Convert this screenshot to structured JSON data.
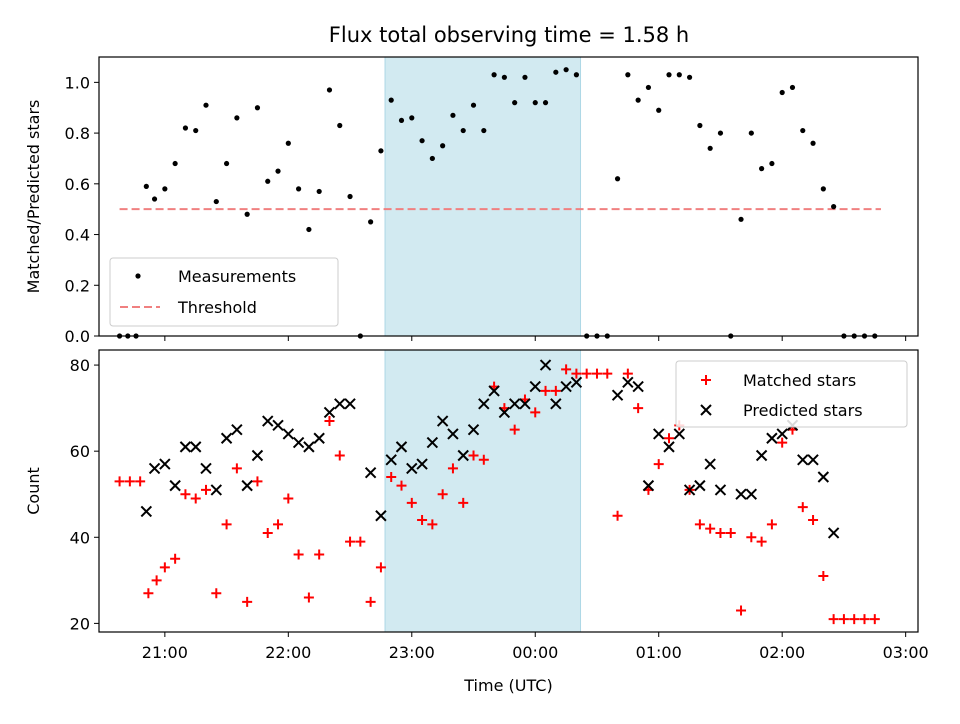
{
  "title": "Flux total observing time = 1.58 h",
  "colors": {
    "matched": "#ff0000",
    "predicted": "#000000",
    "threshold": "#f08080",
    "shade": "#add8e6"
  },
  "chart_data": [
    {
      "type": "scatter",
      "ylabel": "Matched/Predicted stars",
      "ylim": [
        0,
        1.1
      ],
      "yticks": [
        "0.0",
        "0.2",
        "0.4",
        "0.6",
        "0.8",
        "1.0"
      ],
      "xlim": [
        "20:28",
        "03:06"
      ],
      "shaded_region": [
        "22:47",
        "00:22"
      ],
      "threshold": {
        "y": 0.5,
        "x": [
          "20:38",
          "02:48"
        ]
      },
      "legend": {
        "position": "lower-left",
        "entries": [
          "Measurements",
          "Threshold"
        ]
      },
      "series": [
        {
          "name": "Measurements",
          "points": [
            [
              "20:38",
              0
            ],
            [
              "20:42",
              0
            ],
            [
              "20:46",
              0
            ],
            [
              "20:51",
              0.59
            ],
            [
              "20:55",
              0.54
            ],
            [
              "21:00",
              0.58
            ],
            [
              "21:05",
              0.68
            ],
            [
              "21:10",
              0.82
            ],
            [
              "21:15",
              0.81
            ],
            [
              "21:20",
              0.91
            ],
            [
              "21:25",
              0.53
            ],
            [
              "21:30",
              0.68
            ],
            [
              "21:35",
              0.86
            ],
            [
              "21:40",
              0.48
            ],
            [
              "21:45",
              0.9
            ],
            [
              "21:50",
              0.61
            ],
            [
              "21:55",
              0.65
            ],
            [
              "22:00",
              0.76
            ],
            [
              "22:05",
              0.58
            ],
            [
              "22:10",
              0.42
            ],
            [
              "22:15",
              0.57
            ],
            [
              "22:20",
              0.97
            ],
            [
              "22:25",
              0.83
            ],
            [
              "22:30",
              0.55
            ],
            [
              "22:35",
              0
            ],
            [
              "22:40",
              0.45
            ],
            [
              "22:45",
              0.73
            ],
            [
              "22:50",
              0.93
            ],
            [
              "22:55",
              0.85
            ],
            [
              "23:00",
              0.86
            ],
            [
              "23:05",
              0.77
            ],
            [
              "23:10",
              0.7
            ],
            [
              "23:15",
              0.75
            ],
            [
              "23:20",
              0.87
            ],
            [
              "23:25",
              0.81
            ],
            [
              "23:30",
              0.91
            ],
            [
              "23:35",
              0.81
            ],
            [
              "23:40",
              1.03
            ],
            [
              "23:45",
              1.02
            ],
            [
              "23:50",
              0.92
            ],
            [
              "23:55",
              1.02
            ],
            [
              "00:00",
              0.92
            ],
            [
              "00:05",
              0.92
            ],
            [
              "00:10",
              1.04
            ],
            [
              "00:15",
              1.05
            ],
            [
              "00:20",
              1.03
            ],
            [
              "00:25",
              0
            ],
            [
              "00:30",
              0
            ],
            [
              "00:35",
              0
            ],
            [
              "00:40",
              0.62
            ],
            [
              "00:45",
              1.03
            ],
            [
              "00:50",
              0.93
            ],
            [
              "00:55",
              0.98
            ],
            [
              "01:00",
              0.89
            ],
            [
              "01:05",
              1.03
            ],
            [
              "01:10",
              1.03
            ],
            [
              "01:15",
              1.02
            ],
            [
              "01:20",
              0.83
            ],
            [
              "01:25",
              0.74
            ],
            [
              "01:30",
              0.8
            ],
            [
              "01:35",
              0
            ],
            [
              "01:40",
              0.46
            ],
            [
              "01:45",
              0.8
            ],
            [
              "01:50",
              0.66
            ],
            [
              "01:55",
              0.68
            ],
            [
              "02:00",
              0.96
            ],
            [
              "02:05",
              0.98
            ],
            [
              "02:10",
              0.81
            ],
            [
              "02:15",
              0.76
            ],
            [
              "02:20",
              0.58
            ],
            [
              "02:25",
              0.51
            ],
            [
              "02:30",
              0
            ],
            [
              "02:35",
              0
            ],
            [
              "02:40",
              0
            ],
            [
              "02:45",
              0
            ]
          ]
        }
      ]
    },
    {
      "type": "scatter",
      "xlabel": "Time (UTC)",
      "ylabel": "Count",
      "ylim": [
        18,
        83.5
      ],
      "yticks": [
        "20",
        "40",
        "60",
        "80"
      ],
      "xlim": [
        "20:28",
        "03:06"
      ],
      "xticks": [
        "21:00",
        "22:00",
        "23:00",
        "00:00",
        "01:00",
        "02:00",
        "03:00"
      ],
      "shaded_region": [
        "22:47",
        "00:22"
      ],
      "legend": {
        "position": "top-right",
        "entries": [
          "Matched stars",
          "Predicted stars"
        ]
      },
      "series": [
        {
          "name": "Matched stars",
          "points": [
            [
              "20:38",
              53
            ],
            [
              "20:43",
              53
            ],
            [
              "20:48",
              53
            ],
            [
              "20:52",
              27
            ],
            [
              "20:56",
              30
            ],
            [
              "21:00",
              33
            ],
            [
              "21:05",
              35
            ],
            [
              "21:10",
              50
            ],
            [
              "21:15",
              49
            ],
            [
              "21:20",
              51
            ],
            [
              "21:25",
              27
            ],
            [
              "21:30",
              43
            ],
            [
              "21:35",
              56
            ],
            [
              "21:40",
              25
            ],
            [
              "21:45",
              53
            ],
            [
              "21:50",
              41
            ],
            [
              "21:55",
              43
            ],
            [
              "22:00",
              49
            ],
            [
              "22:05",
              36
            ],
            [
              "22:10",
              26
            ],
            [
              "22:15",
              36
            ],
            [
              "22:20",
              67
            ],
            [
              "22:25",
              59
            ],
            [
              "22:30",
              39
            ],
            [
              "22:35",
              39
            ],
            [
              "22:40",
              25
            ],
            [
              "22:45",
              33
            ],
            [
              "22:50",
              54
            ],
            [
              "22:55",
              52
            ],
            [
              "23:00",
              48
            ],
            [
              "23:05",
              44
            ],
            [
              "23:10",
              43
            ],
            [
              "23:15",
              50
            ],
            [
              "23:20",
              56
            ],
            [
              "23:25",
              48
            ],
            [
              "23:30",
              59
            ],
            [
              "23:35",
              58
            ],
            [
              "23:40",
              75
            ],
            [
              "23:45",
              70
            ],
            [
              "23:50",
              65
            ],
            [
              "23:55",
              72
            ],
            [
              "00:00",
              69
            ],
            [
              "00:05",
              74
            ],
            [
              "00:10",
              74
            ],
            [
              "00:15",
              79
            ],
            [
              "00:20",
              78
            ],
            [
              "00:25",
              78
            ],
            [
              "00:30",
              78
            ],
            [
              "00:35",
              78
            ],
            [
              "00:40",
              45
            ],
            [
              "00:45",
              78
            ],
            [
              "00:50",
              70
            ],
            [
              "00:55",
              51
            ],
            [
              "01:00",
              57
            ],
            [
              "01:05",
              63
            ],
            [
              "01:10",
              66
            ],
            [
              "01:15",
              51
            ],
            [
              "01:20",
              43
            ],
            [
              "01:25",
              42
            ],
            [
              "01:30",
              41
            ],
            [
              "01:35",
              41
            ],
            [
              "01:40",
              23
            ],
            [
              "01:45",
              40
            ],
            [
              "01:50",
              39
            ],
            [
              "01:55",
              43
            ],
            [
              "02:00",
              62
            ],
            [
              "02:05",
              65
            ],
            [
              "02:10",
              47
            ],
            [
              "02:15",
              44
            ],
            [
              "02:20",
              31
            ],
            [
              "02:25",
              21
            ],
            [
              "02:30",
              21
            ],
            [
              "02:35",
              21
            ],
            [
              "02:40",
              21
            ],
            [
              "02:45",
              21
            ]
          ]
        },
        {
          "name": "Predicted stars",
          "points": [
            [
              "20:51",
              46
            ],
            [
              "20:55",
              56
            ],
            [
              "21:00",
              57
            ],
            [
              "21:05",
              52
            ],
            [
              "21:10",
              61
            ],
            [
              "21:15",
              61
            ],
            [
              "21:20",
              56
            ],
            [
              "21:25",
              51
            ],
            [
              "21:30",
              63
            ],
            [
              "21:35",
              65
            ],
            [
              "21:40",
              52
            ],
            [
              "21:45",
              59
            ],
            [
              "21:50",
              67
            ],
            [
              "21:55",
              66
            ],
            [
              "22:00",
              64
            ],
            [
              "22:05",
              62
            ],
            [
              "22:10",
              61
            ],
            [
              "22:15",
              63
            ],
            [
              "22:20",
              69
            ],
            [
              "22:25",
              71
            ],
            [
              "22:30",
              71
            ],
            [
              "22:40",
              55
            ],
            [
              "22:45",
              45
            ],
            [
              "22:50",
              58
            ],
            [
              "22:55",
              61
            ],
            [
              "23:00",
              56
            ],
            [
              "23:05",
              57
            ],
            [
              "23:10",
              62
            ],
            [
              "23:15",
              67
            ],
            [
              "23:20",
              64
            ],
            [
              "23:25",
              59
            ],
            [
              "23:30",
              65
            ],
            [
              "23:35",
              71
            ],
            [
              "23:40",
              74
            ],
            [
              "23:45",
              69
            ],
            [
              "23:50",
              71
            ],
            [
              "23:55",
              71
            ],
            [
              "00:00",
              75
            ],
            [
              "00:05",
              80
            ],
            [
              "00:10",
              71
            ],
            [
              "00:15",
              75
            ],
            [
              "00:20",
              76
            ],
            [
              "00:40",
              73
            ],
            [
              "00:45",
              76
            ],
            [
              "00:50",
              75
            ],
            [
              "00:55",
              52
            ],
            [
              "01:00",
              64
            ],
            [
              "01:05",
              61
            ],
            [
              "01:10",
              64
            ],
            [
              "01:15",
              51
            ],
            [
              "01:20",
              52
            ],
            [
              "01:25",
              57
            ],
            [
              "01:30",
              51
            ],
            [
              "01:40",
              50
            ],
            [
              "01:45",
              50
            ],
            [
              "01:50",
              59
            ],
            [
              "01:55",
              63
            ],
            [
              "02:00",
              64
            ],
            [
              "02:05",
              66
            ],
            [
              "02:10",
              58
            ],
            [
              "02:15",
              58
            ],
            [
              "02:20",
              54
            ],
            [
              "02:25",
              41
            ]
          ]
        }
      ]
    }
  ]
}
